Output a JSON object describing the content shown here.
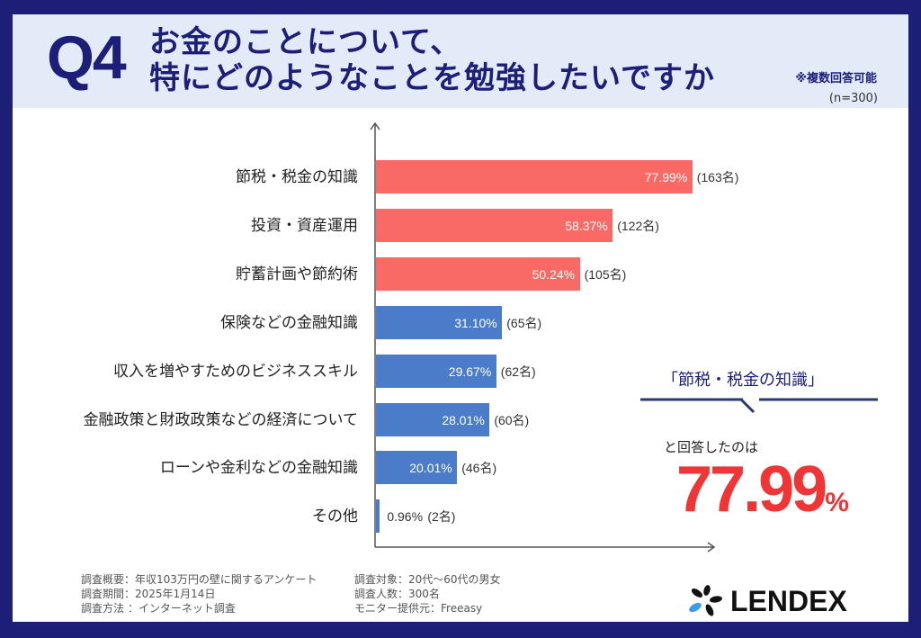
{
  "header": {
    "question_label": "Q4",
    "title_line1": "お金のことについて、",
    "title_line2": "特にどのようなことを勉強したいですか",
    "multi_answer_note": "※複数回答可能",
    "sample_size": "(n=300)"
  },
  "colors": {
    "frame": "#1c1e78",
    "header_bg": "#e3ebf9",
    "bar_highlight": "#f96a66",
    "bar_normal": "#4a7cc9",
    "callout_number": "#ef3535"
  },
  "chart_data": {
    "type": "bar",
    "orientation": "horizontal",
    "title": "お金のことについて、特にどのようなことを勉強したいですか",
    "xlabel": "",
    "ylabel": "",
    "xlim": [
      0,
      100
    ],
    "grid": false,
    "categories": [
      "節税・税金の知識",
      "投資・資産運用",
      "貯蓄計画や節約術",
      "保険などの金融知識",
      "収入を増やすためのビジネススキル",
      "金融政策と財政政策などの経済について",
      "ローンや金利などの金融知識",
      "その他"
    ],
    "values": [
      77.99,
      58.37,
      50.24,
      31.1,
      29.67,
      28.01,
      20.01,
      0.96
    ],
    "value_labels": [
      "77.99%",
      "58.37%",
      "50.24%",
      "31.10%",
      "29.67%",
      "28.01%",
      "20.01%",
      "0.96%"
    ],
    "counts": [
      163,
      122,
      105,
      65,
      62,
      60,
      46,
      2
    ],
    "count_labels": [
      "(163名)",
      "(122名)",
      "(105名)",
      "(65名)",
      "(62名)",
      "(60名)",
      "(46名)",
      "(2名)"
    ],
    "highlight": [
      true,
      true,
      true,
      false,
      false,
      false,
      false,
      false
    ]
  },
  "callout": {
    "title": "「節税・税金の知識」",
    "subtitle": "と回答したのは",
    "value": "77.99",
    "unit": "%"
  },
  "footer": {
    "left": [
      "調査概要：年収103万円の壁に関するアンケート",
      "調査期間：2025年1月14日",
      "調査方法 ：インターネット調査"
    ],
    "right": [
      "調査対象：20代～60代の男女",
      "調査人数：300名",
      "モニター提供元：Freeasy"
    ],
    "logo_text": "LENDEX"
  }
}
